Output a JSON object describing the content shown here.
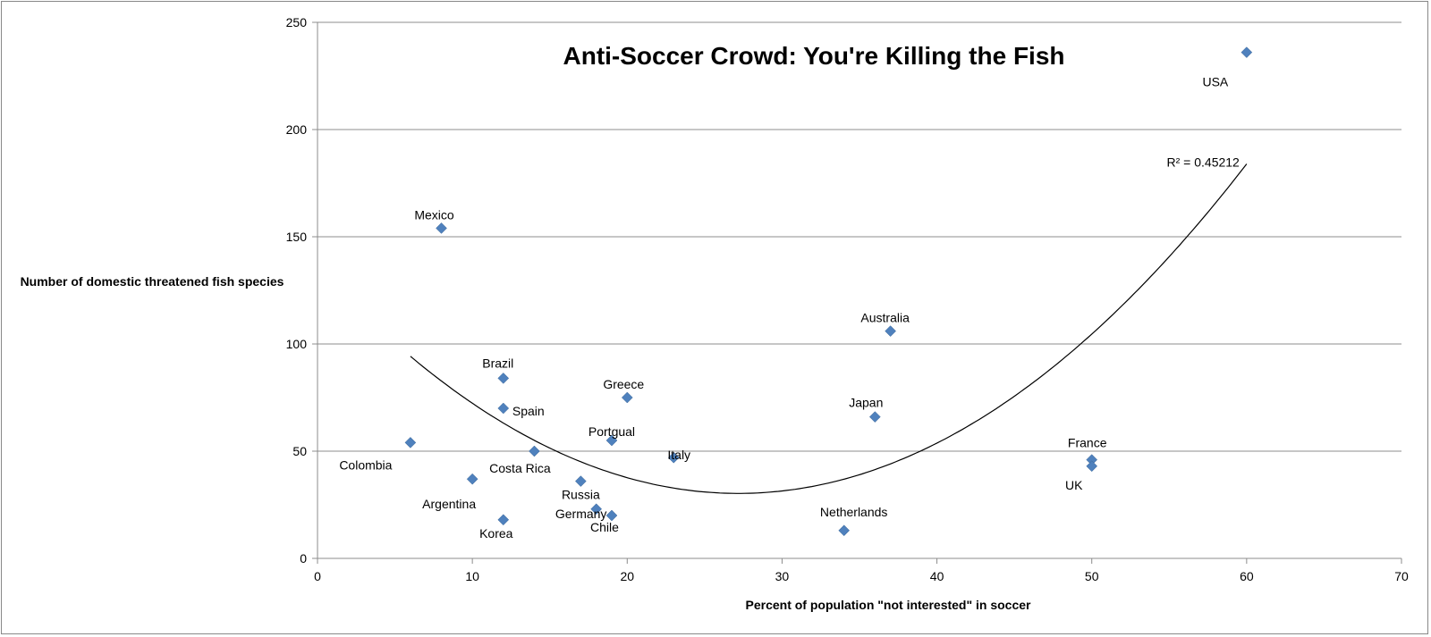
{
  "chart_data": {
    "type": "scatter",
    "title": "Anti-Soccer Crowd: You're Killing the Fish",
    "xlabel": "Percent of population \"not interested\" in soccer",
    "ylabel": "Number of domestic threatened fish species",
    "xlim": [
      0,
      70
    ],
    "ylim": [
      0,
      250
    ],
    "x_ticks": [
      "0",
      "10",
      "20",
      "30",
      "40",
      "50",
      "60",
      "70"
    ],
    "y_ticks": [
      "0",
      "50",
      "100",
      "150",
      "200",
      "250"
    ],
    "grid": "horizontal",
    "legend": "none",
    "marker_color": "#4f81bd",
    "points": [
      {
        "label": "USA",
        "x": 60,
        "y": 236
      },
      {
        "label": "Mexico",
        "x": 8,
        "y": 154
      },
      {
        "label": "Australia",
        "x": 37,
        "y": 106
      },
      {
        "label": "Brazil",
        "x": 12,
        "y": 84
      },
      {
        "label": "Greece",
        "x": 20,
        "y": 75
      },
      {
        "label": "Spain",
        "x": 12,
        "y": 70
      },
      {
        "label": "Japan",
        "x": 36,
        "y": 66
      },
      {
        "label": "Portgual",
        "x": 19,
        "y": 55
      },
      {
        "label": "Colombia",
        "x": 6,
        "y": 54
      },
      {
        "label": "Costa Rica",
        "x": 14,
        "y": 50
      },
      {
        "label": "Italy",
        "x": 23,
        "y": 47
      },
      {
        "label": "France",
        "x": 50,
        "y": 46
      },
      {
        "label": "UK",
        "x": 50,
        "y": 43
      },
      {
        "label": "Argentina",
        "x": 10,
        "y": 37
      },
      {
        "label": "Russia",
        "x": 17,
        "y": 36
      },
      {
        "label": "Germany",
        "x": 18,
        "y": 23
      },
      {
        "label": "Chile",
        "x": 19,
        "y": 20
      },
      {
        "label": "Korea",
        "x": 12,
        "y": 18
      },
      {
        "label": "Netherlands",
        "x": 34,
        "y": 13
      }
    ],
    "trendline": {
      "type": "polynomial",
      "coefficients": [
        135.6,
        -7.75,
        0.1426
      ],
      "x_range": [
        6,
        60
      ],
      "r_squared_label": "R² = 0.45212"
    }
  }
}
